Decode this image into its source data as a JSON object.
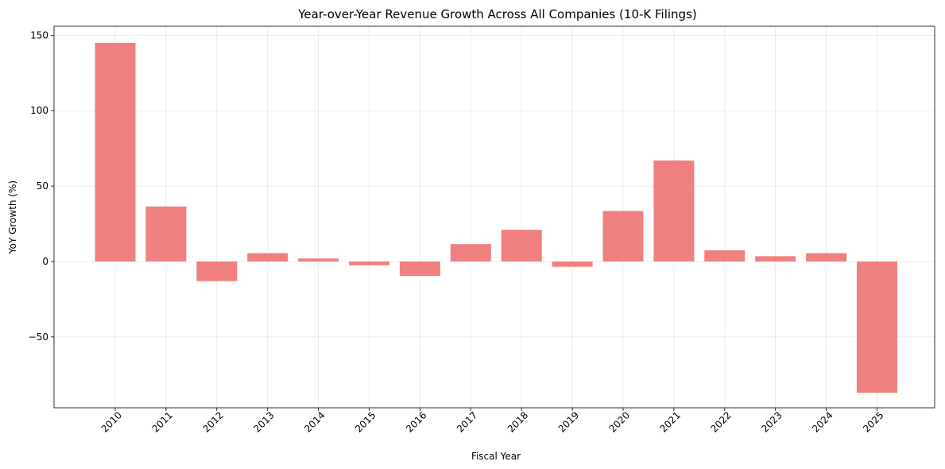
{
  "chart_data": {
    "type": "bar",
    "title": "Year-over-Year Revenue Growth Across All Companies (10-K Filings)",
    "xlabel": "Fiscal Year",
    "ylabel": "YoY Growth (%)",
    "categories": [
      "2010",
      "2011",
      "2012",
      "2013",
      "2014",
      "2015",
      "2016",
      "2017",
      "2018",
      "2019",
      "2020",
      "2021",
      "2022",
      "2023",
      "2024",
      "2025"
    ],
    "values": [
      145,
      36.5,
      -13,
      5.5,
      2,
      -2.5,
      -9.5,
      11.5,
      21,
      -3.5,
      33.5,
      67,
      7.5,
      3.5,
      5.5,
      -87
    ],
    "ylim": [
      -97,
      156
    ],
    "yticks": [
      -50,
      0,
      50,
      100,
      150
    ],
    "ytick_labels": [
      "−50",
      "0",
      "50",
      "100",
      "150"
    ],
    "grid": true,
    "bar_color": "#f08080"
  }
}
